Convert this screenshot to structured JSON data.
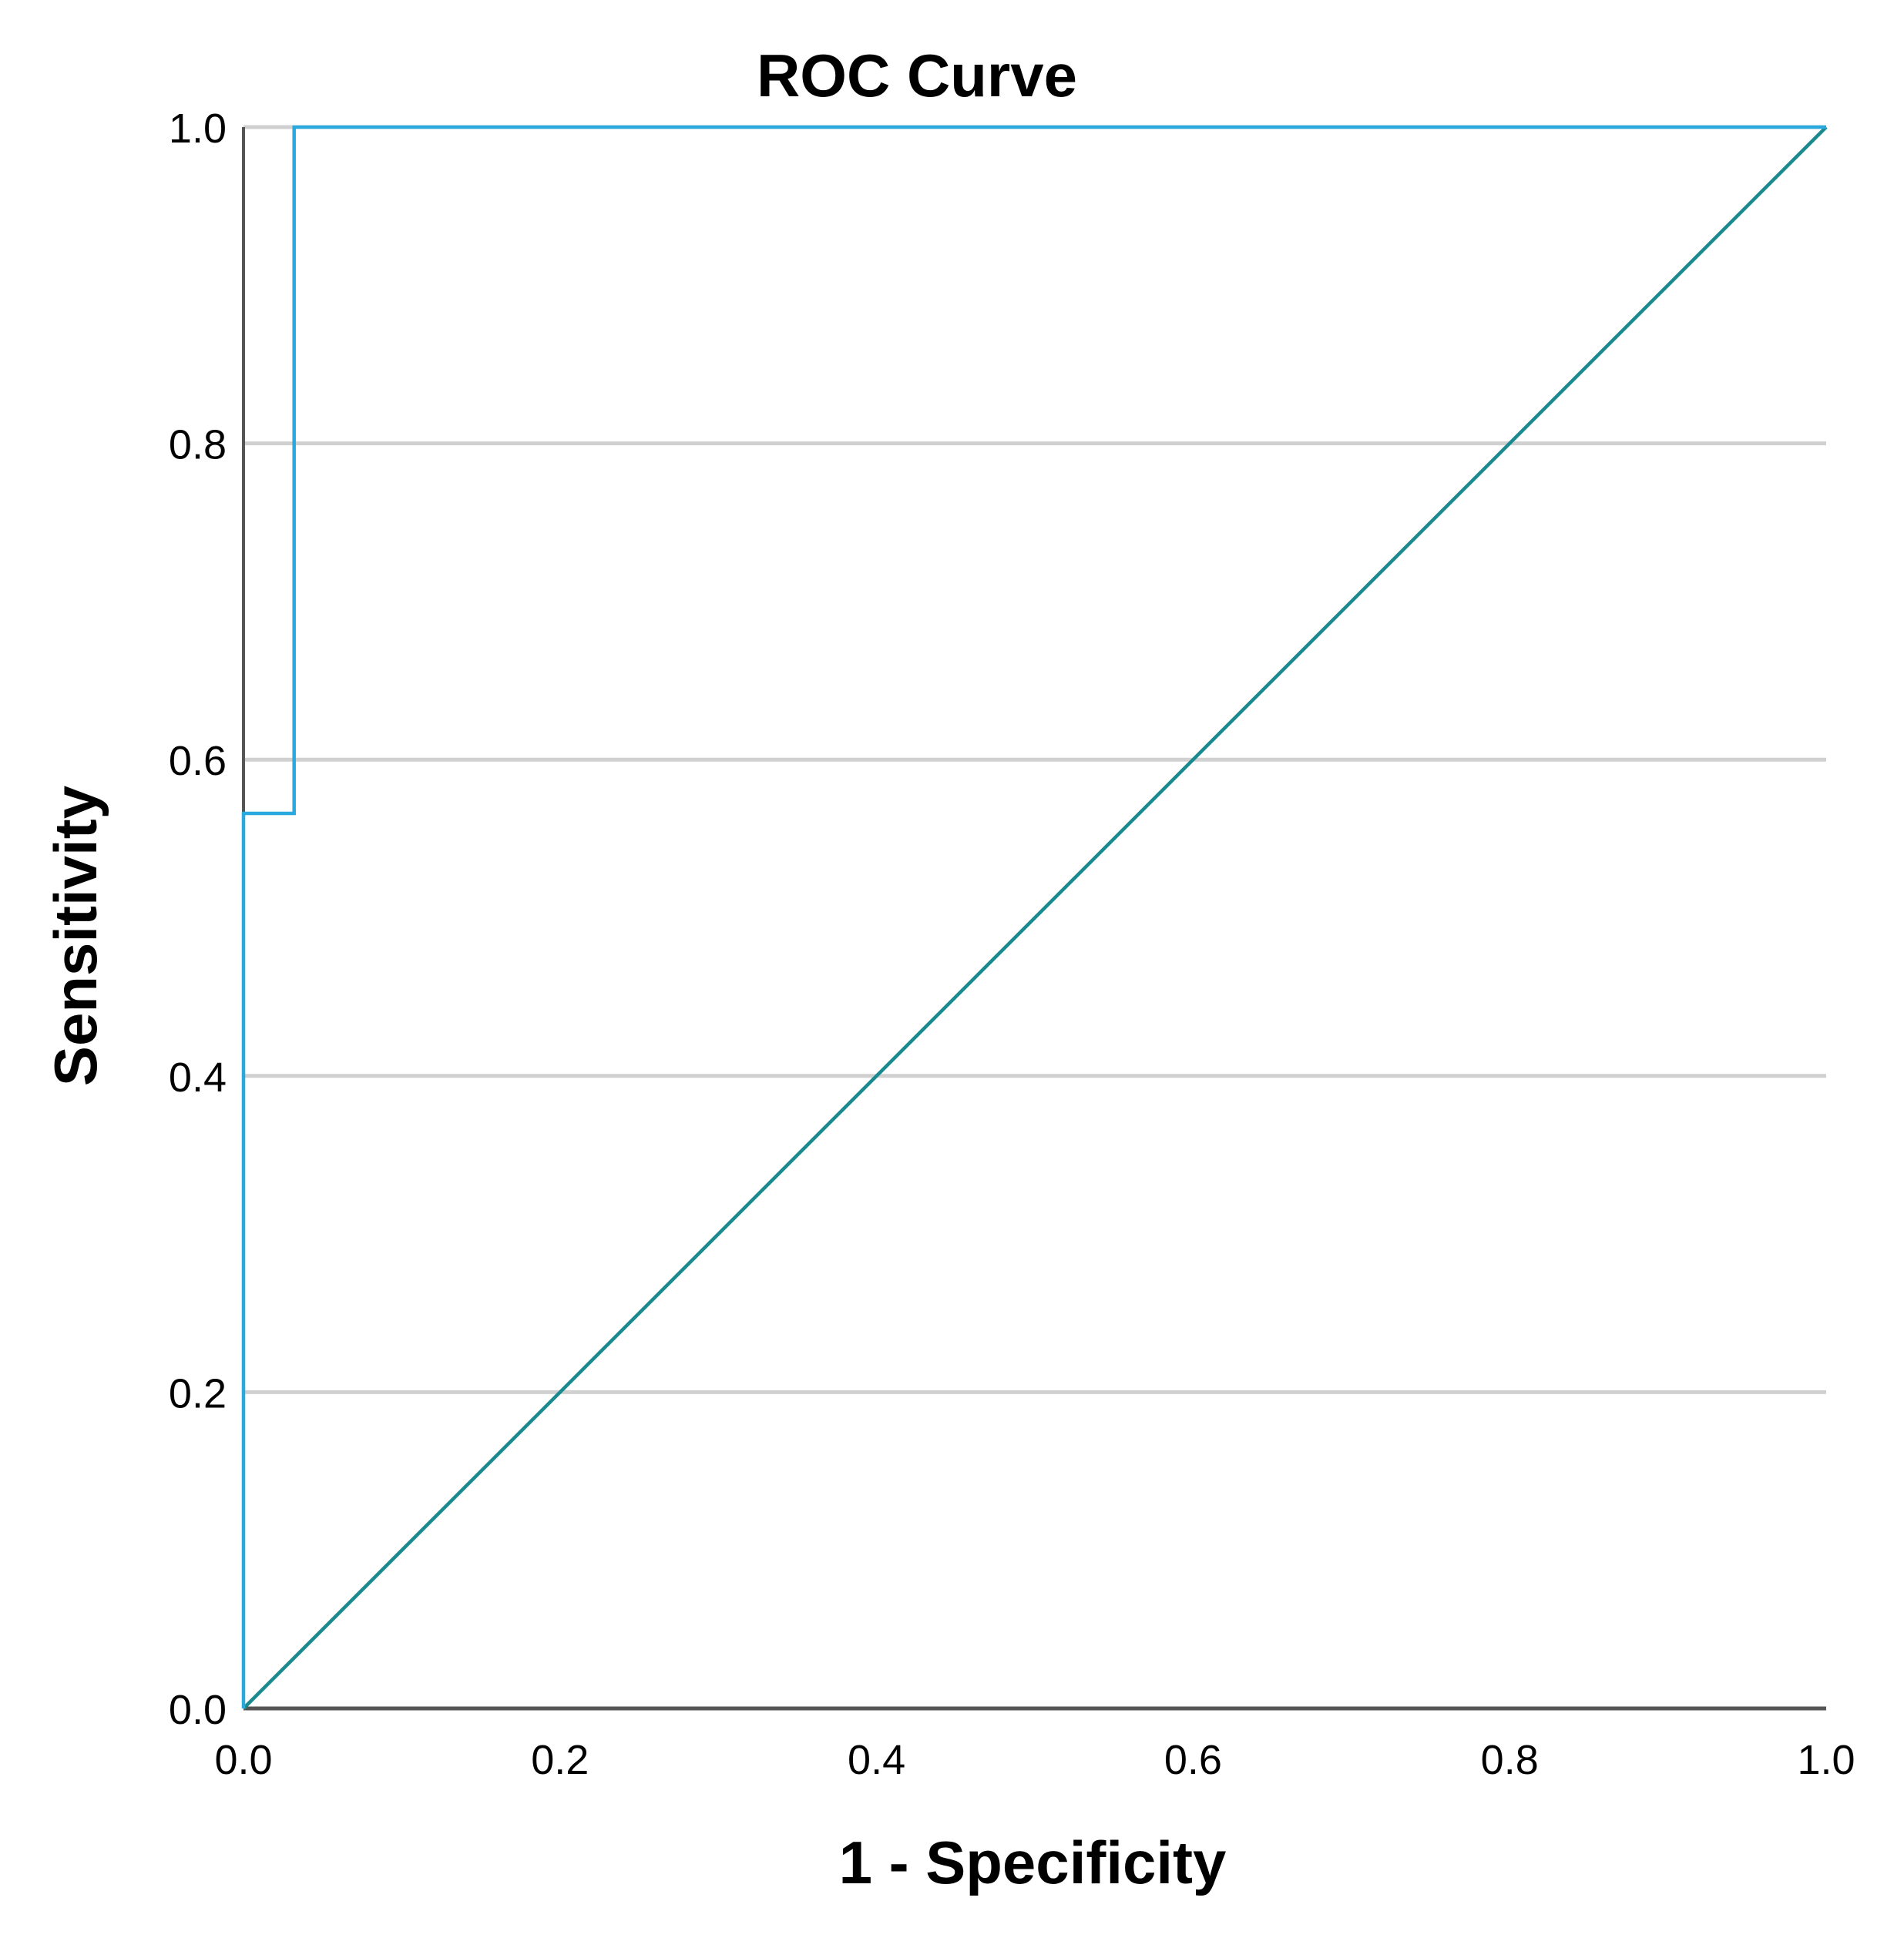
{
  "chart_data": {
    "type": "line",
    "title": "ROC Curve",
    "xlabel": "1 - Specificity",
    "ylabel": "Sensitivity",
    "xlim": [
      0,
      1
    ],
    "ylim": [
      0,
      1
    ],
    "xticks": [
      "0.0",
      "0.2",
      "0.4",
      "0.6",
      "0.8",
      "1.0"
    ],
    "yticks": [
      "0.0",
      "0.2",
      "0.4",
      "0.6",
      "0.8",
      "1.0"
    ],
    "grid": "horizontal",
    "series": [
      {
        "color": "#2aa9de",
        "x": [
          0.0,
          0.0,
          0.032,
          0.032,
          1.0
        ],
        "y": [
          0.0,
          0.566,
          0.566,
          1.0,
          1.0
        ]
      },
      {
        "color": "#1a8a8f",
        "x": [
          0.0,
          1.0
        ],
        "y": [
          0.0,
          1.0
        ]
      }
    ],
    "colors": {
      "grid": "#d0d0d0",
      "axis": "#555555"
    }
  }
}
